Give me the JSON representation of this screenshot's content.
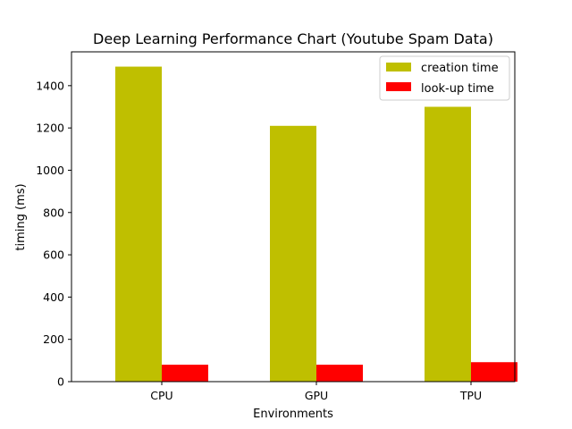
{
  "chart_data": {
    "type": "bar",
    "title": "Deep Learning Performance Chart (Youtube Spam Data)",
    "xlabel": "Environments",
    "ylabel": "timing (ms)",
    "categories": [
      "CPU",
      "GPU",
      "TPU"
    ],
    "series": [
      {
        "name": "creation time",
        "color": "#bfbf00",
        "values": [
          1490,
          1210,
          1300
        ]
      },
      {
        "name": "look-up time",
        "color": "#ff0000",
        "values": [
          80,
          80,
          92
        ]
      }
    ],
    "ylim": [
      0,
      1560
    ],
    "yticks": [
      0,
      200,
      400,
      600,
      800,
      1000,
      1200,
      1400
    ],
    "grid": false,
    "legend_position": "top-right"
  }
}
